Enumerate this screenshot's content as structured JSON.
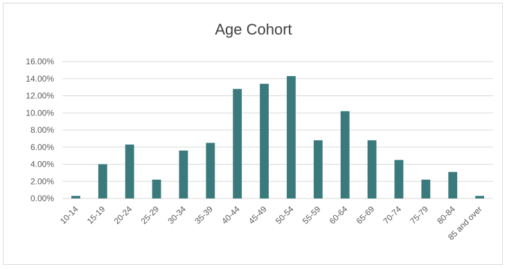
{
  "chart_data": {
    "type": "bar",
    "title": "Age Cohort",
    "xlabel": "",
    "ylabel": "",
    "categories": [
      "10-14",
      "15-19",
      "20-24",
      "25-29",
      "30-34",
      "35-39",
      "40-44",
      "45-49",
      "50-54",
      "55-59",
      "60-64",
      "65-69",
      "70-74",
      "75-79",
      "80-84",
      "85 and over"
    ],
    "values": [
      0.3,
      4.0,
      6.3,
      2.2,
      5.6,
      6.5,
      12.8,
      13.4,
      14.3,
      6.8,
      10.2,
      6.8,
      4.5,
      2.2,
      3.1,
      0.3
    ],
    "ylim": [
      0,
      16
    ],
    "yticks": [
      "0.00%",
      "2.00%",
      "4.00%",
      "6.00%",
      "8.00%",
      "10.00%",
      "12.00%",
      "14.00%",
      "16.00%"
    ],
    "grid": true,
    "legend": "none",
    "bar_color": "#3a7a7d",
    "grid_color": "#d9d9d9"
  }
}
